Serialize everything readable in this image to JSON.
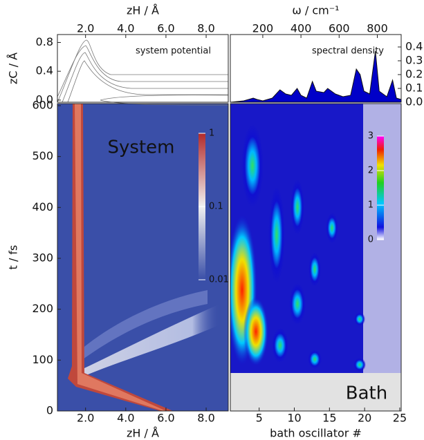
{
  "chart_data": [
    {
      "type": "contour",
      "title": "system potential",
      "x_label": "zH / Å",
      "y_label": "zC / Å",
      "xlim": [
        0.6,
        9.1
      ],
      "ylim": [
        -0.03,
        0.91
      ],
      "xticks": [
        {
          "value": 2,
          "label": "2.0"
        },
        {
          "value": 4,
          "label": "4.0"
        },
        {
          "value": 6,
          "label": "6.0"
        },
        {
          "value": 8,
          "label": "8.0"
        }
      ],
      "yticks": [
        {
          "value": 0,
          "label": "0.0"
        },
        0.4,
        0.8
      ]
    },
    {
      "type": "area",
      "title": "spectral density",
      "x_label": "ω / cm⁻¹",
      "color": "#0000c8",
      "xlim": [
        30,
        925
      ],
      "ylim": [
        0,
        0.49
      ],
      "xticks": [
        200,
        400,
        600,
        800
      ],
      "yticks": [
        {
          "value": 0,
          "label": "0.0"
        },
        0.1,
        0.2,
        0.3,
        0.4
      ],
      "x": [
        30,
        100,
        150,
        170,
        200,
        250,
        290,
        320,
        350,
        380,
        400,
        430,
        460,
        480,
        520,
        540,
        580,
        620,
        660,
        690,
        710,
        730,
        760,
        790,
        810,
        850,
        880,
        900,
        925
      ],
      "values": [
        0,
        0.01,
        0.03,
        0.02,
        0.01,
        0.03,
        0.09,
        0.06,
        0.05,
        0.1,
        0.05,
        0.03,
        0.15,
        0.08,
        0.07,
        0.1,
        0.06,
        0.04,
        0.05,
        0.24,
        0.2,
        0.08,
        0.06,
        0.37,
        0.08,
        0.04,
        0.16,
        0.03,
        0.02
      ]
    },
    {
      "type": "heatmap",
      "label": "System",
      "x_label": "zH / Å",
      "y_label": "t / fs",
      "xlim": [
        0.6,
        9.1
      ],
      "ylim": [
        0,
        604
      ],
      "xticks": [
        {
          "value": 2,
          "label": "2.0"
        },
        {
          "value": 4,
          "label": "4.0"
        },
        {
          "value": 6,
          "label": "6.0"
        },
        {
          "value": 8,
          "label": "8.0"
        }
      ],
      "yticks": [
        0,
        100,
        200,
        300,
        400,
        500,
        600
      ],
      "colorbar_scale": "log",
      "colorbar_lim": [
        0.01,
        1
      ],
      "colorbar_ticks": [
        1,
        0.1,
        0.01
      ]
    },
    {
      "type": "heatmap",
      "label": "Bath",
      "x_label": "bath oscillator #",
      "xlim": [
        0.9,
        25.2
      ],
      "ylim": [
        0,
        604
      ],
      "xticks": [
        5,
        10,
        15,
        20,
        25
      ],
      "colorbar_scale": "linear",
      "colorbar_lim": [
        0,
        3
      ],
      "colorbar_ticks": [
        3,
        2,
        1,
        0
      ]
    }
  ]
}
